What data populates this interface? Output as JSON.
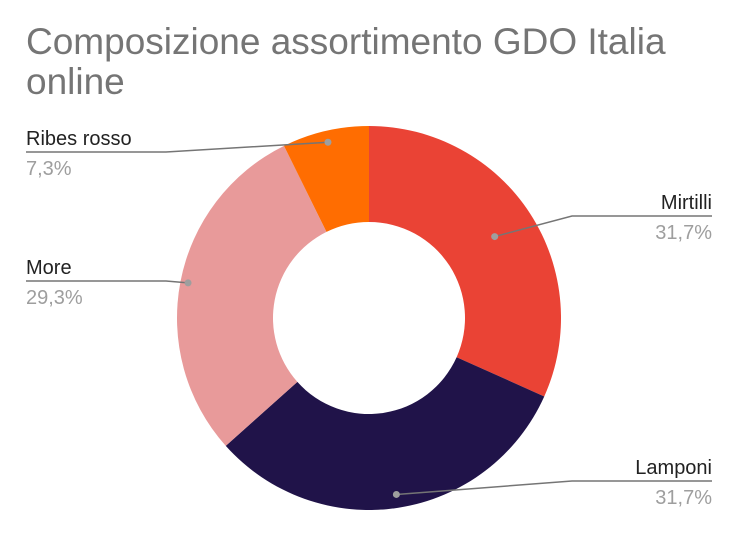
{
  "chart_data": {
    "type": "pie",
    "donut": true,
    "title": "Composizione assortimento GDO Italia online",
    "slices": [
      {
        "name": "Mirtilli",
        "value": 31.7,
        "label": "31,7%",
        "color": "#EA4335"
      },
      {
        "name": "Lamponi",
        "value": 31.7,
        "label": "31,7%",
        "color": "#201349"
      },
      {
        "name": "More",
        "value": 29.3,
        "label": "29,3%",
        "color": "#E89A9A"
      },
      {
        "name": "Ribes rosso",
        "value": 7.3,
        "label": "7,3%",
        "color": "#FF6D01"
      }
    ],
    "legend": "none",
    "labels": "outside with leader lines"
  }
}
